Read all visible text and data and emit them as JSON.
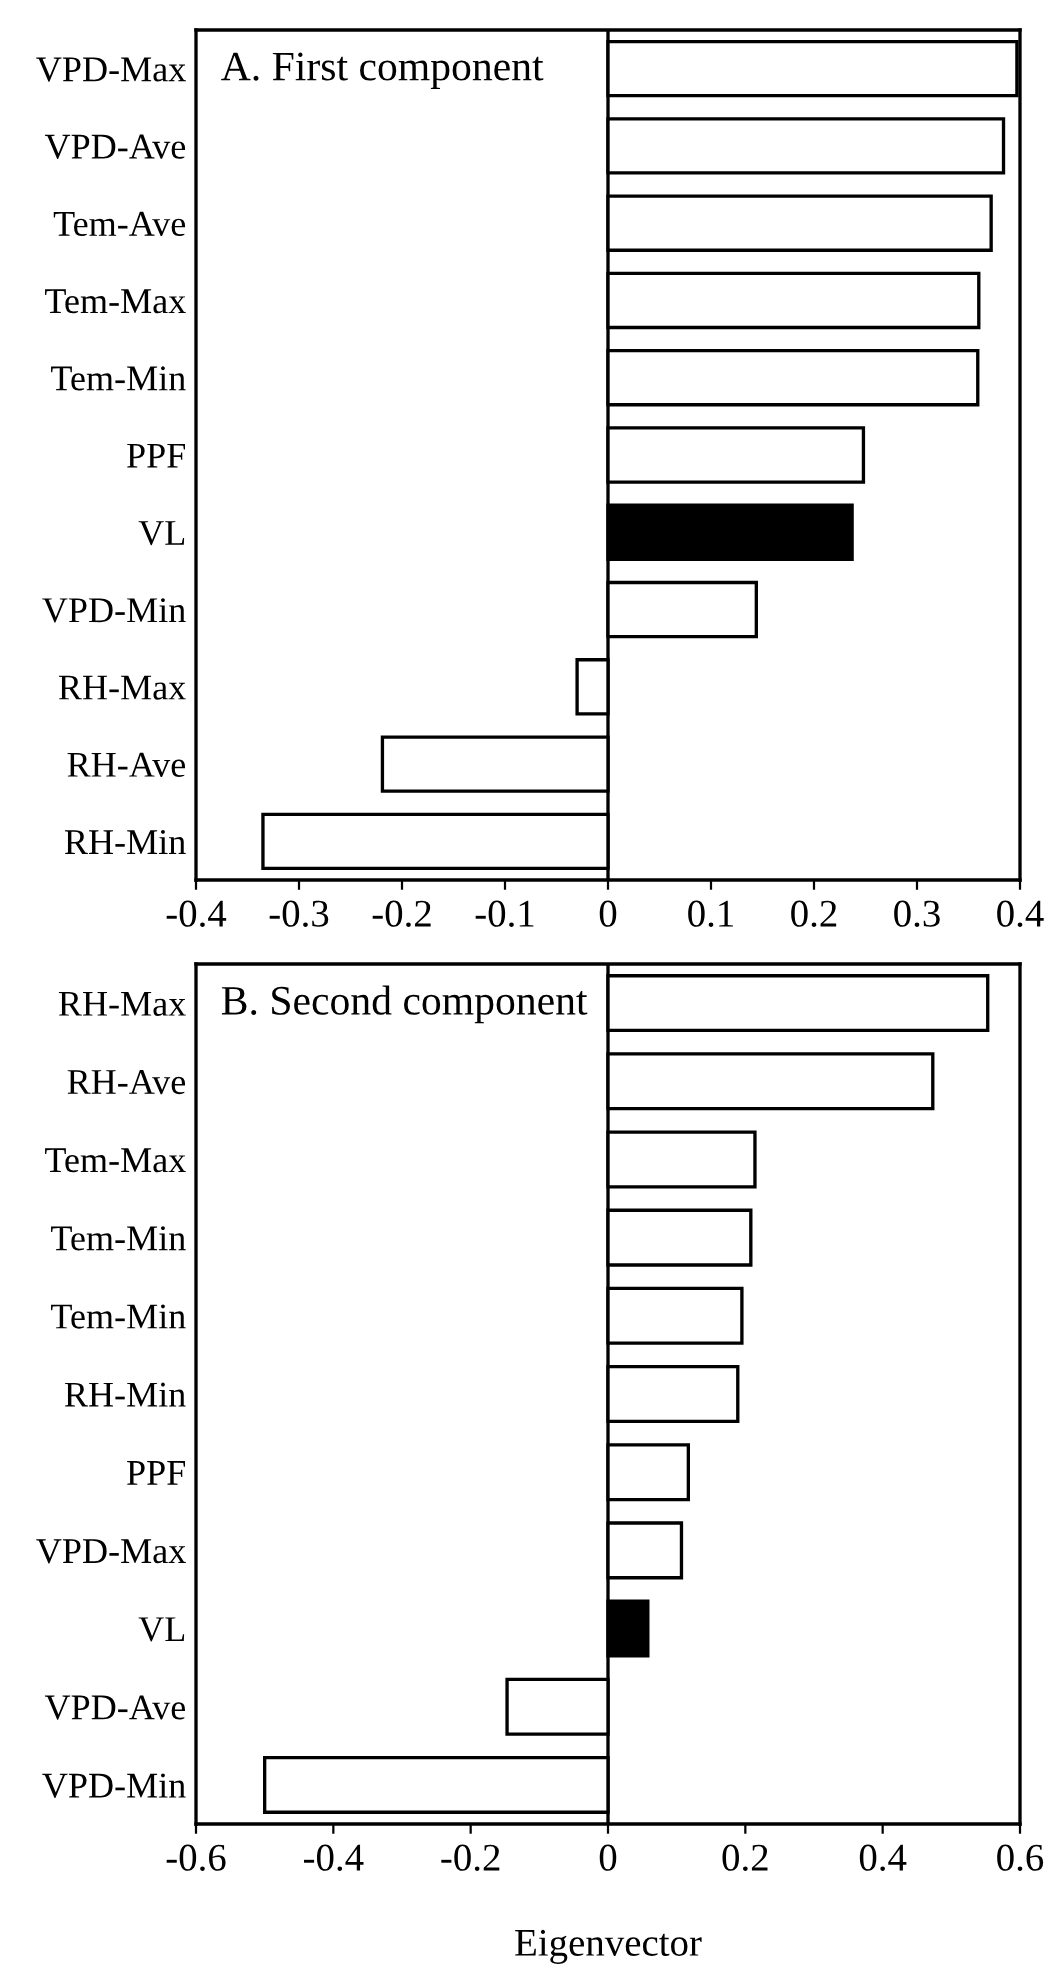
{
  "chart_data": [
    {
      "type": "bar",
      "orientation": "horizontal",
      "title": "A. First component",
      "categories": [
        "VPD-Max",
        "VPD-Ave",
        "Tem-Ave",
        "Tem-Max",
        "Tem-Min",
        "PPF",
        "VL",
        "VPD-Min",
        "RH-Max",
        "RH-Ave",
        "RH-Min"
      ],
      "values": [
        0.397,
        0.384,
        0.372,
        0.36,
        0.359,
        0.248,
        0.237,
        0.144,
        -0.03,
        -0.219,
        -0.335
      ],
      "colors": [
        "#ffffff",
        "#ffffff",
        "#ffffff",
        "#ffffff",
        "#ffffff",
        "#ffffff",
        "#000000",
        "#ffffff",
        "#ffffff",
        "#ffffff",
        "#ffffff"
      ],
      "xlim": [
        -0.4,
        0.4
      ],
      "xticks": [
        -0.4,
        -0.3,
        -0.2,
        -0.1,
        0,
        0.1,
        0.2,
        0.3,
        0.4
      ],
      "ref_lines": [
        {
          "axis": "x",
          "value": 0
        }
      ]
    },
    {
      "type": "bar",
      "orientation": "horizontal",
      "title": "B. Second component",
      "xlabel": "Eigenvector",
      "categories": [
        "RH-Max",
        "RH-Ave",
        "Tem-Max",
        "Tem-Min",
        "Tem-Min",
        "RH-Min",
        "PPF",
        "VPD-Max",
        "VL",
        "VPD-Ave",
        "VPD-Min"
      ],
      "values": [
        0.553,
        0.473,
        0.214,
        0.208,
        0.195,
        0.189,
        0.117,
        0.107,
        0.058,
        -0.147,
        -0.5
      ],
      "colors": [
        "#ffffff",
        "#ffffff",
        "#ffffff",
        "#ffffff",
        "#ffffff",
        "#ffffff",
        "#ffffff",
        "#ffffff",
        "#000000",
        "#ffffff",
        "#ffffff"
      ],
      "xlim": [
        -0.6,
        0.6
      ],
      "xticks": [
        -0.6,
        -0.4,
        -0.2,
        0,
        0.2,
        0.4,
        0.6
      ],
      "ref_lines": [
        {
          "axis": "x",
          "value": 0
        }
      ]
    }
  ]
}
